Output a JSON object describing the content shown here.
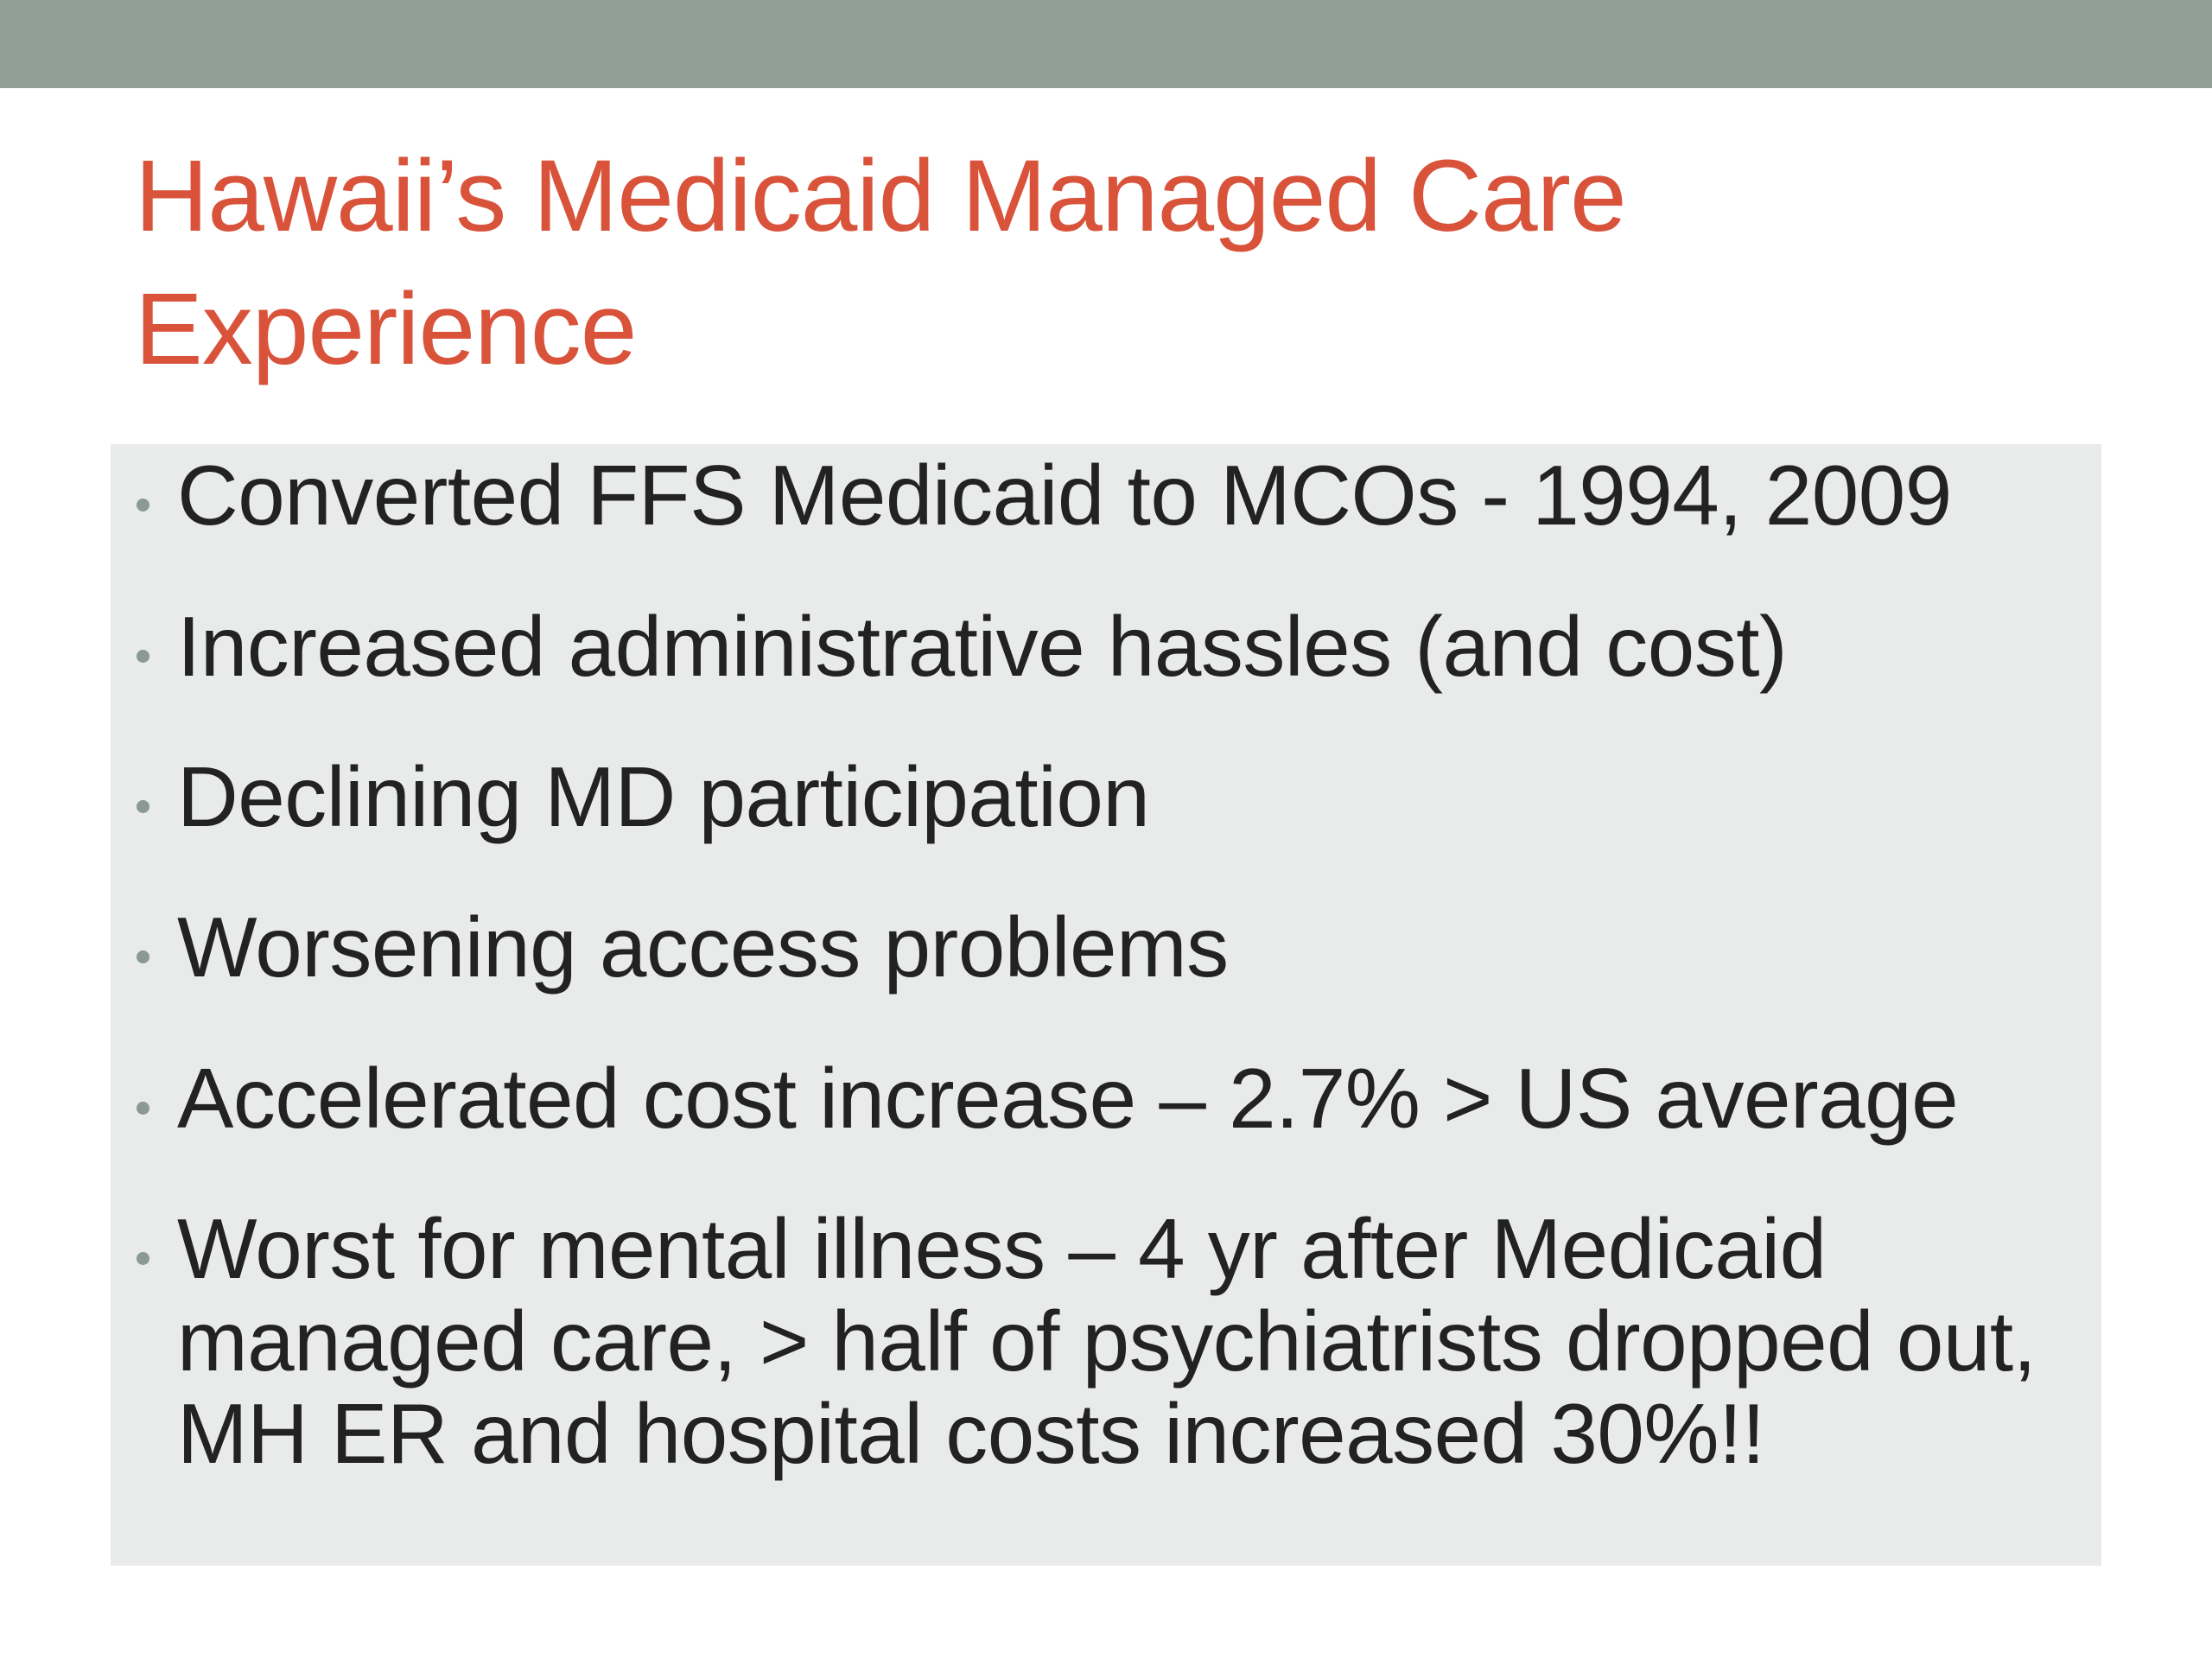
{
  "slide": {
    "title": "Hawaii’s Medicaid Managed Care Experience",
    "bullets": [
      "Converted FFS Medicaid to MCOs - 1994, 2009",
      "Increased administrative hassles (and cost)",
      "Declining MD participation",
      "Worsening access problems",
      "Accelerated cost increase – 2.7% > US average",
      "Worst for mental illness – 4 yr after Medicaid managed care, > half of psychiatrists dropped out, MH ER and hospital costs increased 30%!!"
    ]
  },
  "colors": {
    "top_bar": "#929f98",
    "title": "#d9533b",
    "content_background": "#e9eaea",
    "bullet_dot": "#8a9991",
    "body_text": "#222222"
  }
}
